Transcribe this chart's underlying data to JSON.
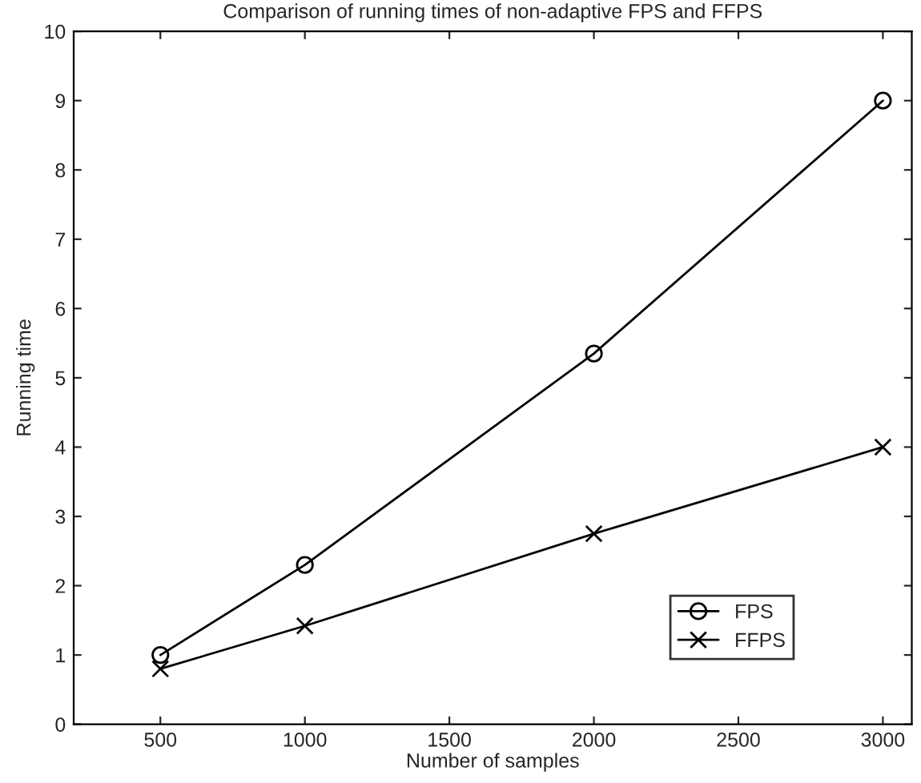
{
  "chart_data": {
    "type": "line",
    "title": "Comparison of running times of non-adaptive FPS and FFPS",
    "xlabel": "Number of samples",
    "ylabel": "Running time",
    "x": [
      500,
      1000,
      2000,
      3000
    ],
    "series": [
      {
        "name": "FPS",
        "color": "#000000",
        "marker": "circle",
        "values": [
          1.0,
          2.3,
          5.35,
          9.0
        ]
      },
      {
        "name": "FFPS",
        "color": "#000000",
        "marker": "cross",
        "values": [
          0.8,
          1.42,
          2.75,
          4.0
        ]
      }
    ],
    "xlim": [
      200,
      3100
    ],
    "xticks": [
      500,
      1000,
      1500,
      2000,
      2500,
      3000
    ],
    "ylim": [
      0,
      10
    ],
    "yticks": [
      0,
      1,
      2,
      3,
      4,
      5,
      6,
      7,
      8,
      9,
      10
    ],
    "legend": "bottom right",
    "grid": false,
    "line_style": "solid"
  }
}
